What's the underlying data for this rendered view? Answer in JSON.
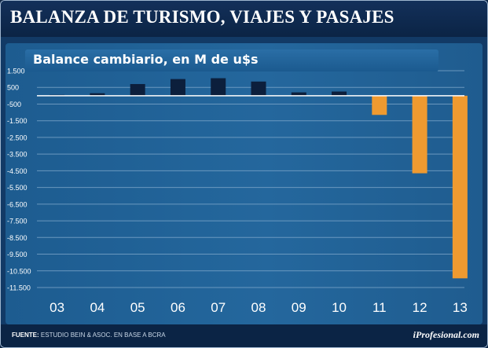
{
  "header": {
    "title": "BALANZA DE TURISMO, VIAJES Y PASAJES"
  },
  "chart_data": {
    "type": "bar",
    "title": "BALANZA DE TURISMO, VIAJES Y PASAJES",
    "subtitle": "Balance cambiario, en M de u$s",
    "categories": [
      "03",
      "04",
      "05",
      "06",
      "07",
      "08",
      "09",
      "10",
      "11",
      "12",
      "13"
    ],
    "values": [
      50,
      150,
      700,
      1000,
      1050,
      850,
      200,
      250,
      -1150,
      -4650,
      -10950
    ],
    "ylim": [
      -11500,
      1500
    ],
    "yticks": [
      1500,
      500,
      -500,
      -1500,
      -2500,
      -3500,
      -4500,
      -5500,
      -6500,
      -7500,
      -8500,
      -9500,
      -10500,
      -11500
    ],
    "ytick_labels": [
      "1.500",
      "500",
      "-500",
      "-1.500",
      "-2.500",
      "-3.500",
      "-4.500",
      "-5.500",
      "-6.500",
      "-7.500",
      "-8.500",
      "-9.500",
      "-10.500",
      "-11.500"
    ],
    "grid": true,
    "colors": {
      "positive": "#0c1f3c",
      "negative": "#ef9a30",
      "grid": "#7da6c9",
      "axis": "#ffffff"
    }
  },
  "footer": {
    "source_label": "FUENTE:",
    "source_text": "ESTUDIO BEIN & ASOC. EN BASE A BCRA",
    "brand": "iProfesional.com"
  }
}
